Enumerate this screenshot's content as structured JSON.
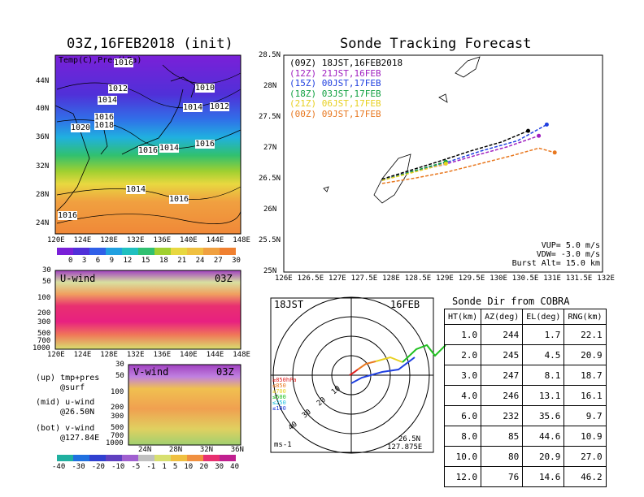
{
  "map_panel": {
    "title": "03Z,16FEB2018 (init)",
    "overlay_label": "Temp(C),Pres(hPa)",
    "lon_ticks": [
      "120E",
      "124E",
      "128E",
      "132E",
      "136E",
      "140E",
      "144E",
      "148E"
    ],
    "lat_ticks": [
      "44N",
      "40N",
      "36N",
      "32N",
      "28N",
      "24N"
    ],
    "isobar_labels": [
      "1016",
      "1012",
      "1014",
      "1010",
      "1014",
      "1012",
      "1016",
      "1018",
      "1020",
      "1016",
      "1014",
      "1016",
      "1014",
      "1016",
      "1016"
    ],
    "temp_colorbar": [
      "0",
      "3",
      "6",
      "9",
      "12",
      "15",
      "18",
      "21",
      "24",
      "27",
      "30"
    ]
  },
  "uwind_panel": {
    "title": "U-wind",
    "time": "03Z",
    "p_ticks": [
      "30",
      "50",
      "100",
      "200",
      "300",
      "500",
      "700",
      "1000"
    ],
    "lon_ticks": [
      "120E",
      "124E",
      "128E",
      "132E",
      "136E",
      "140E",
      "144E",
      "148E"
    ]
  },
  "vwind_panel": {
    "title": "V-wind",
    "time": "03Z",
    "p_ticks": [
      "30",
      "50",
      "100",
      "200",
      "300",
      "500",
      "700",
      "1000"
    ],
    "lat_ticks": [
      "24N",
      "28N",
      "32N",
      "36N"
    ]
  },
  "notes": {
    "up_1": "(up) tmp+pres",
    "up_2": "@surf",
    "mid_1": "(mid) u-wind",
    "mid_2": "@26.50N",
    "bot_1": "(bot) v-wind",
    "bot_2": "@127.84E"
  },
  "wind_colorbar": [
    "-40",
    "-30",
    "-20",
    "-10",
    "-5",
    "-1",
    "1",
    "5",
    "10",
    "20",
    "30",
    "40"
  ],
  "tracking": {
    "title": "Sonde Tracking Forecast",
    "lat_ticks": [
      "28.5N",
      "28N",
      "27.5N",
      "27N",
      "26.5N",
      "26N",
      "25.5N",
      "25N"
    ],
    "lon_ticks": [
      "126E",
      "126.5E",
      "127E",
      "127.5E",
      "128E",
      "128.5E",
      "129E",
      "129.5E",
      "130E",
      "130.5E",
      "131E",
      "131.5E",
      "132E"
    ],
    "legend": [
      {
        "run": "(09Z)",
        "time": "18JST,16FEB2018",
        "color": "#000000"
      },
      {
        "run": "(12Z)",
        "time": "21JST,16FEB",
        "color": "#a020c0"
      },
      {
        "run": "(15Z)",
        "time": "00JST,17FEB",
        "color": "#2040e0"
      },
      {
        "run": "(18Z)",
        "time": "03JST,17FEB",
        "color": "#10a040"
      },
      {
        "run": "(21Z)",
        "time": "06JST,17FEB",
        "color": "#e8d020"
      },
      {
        "run": "(00Z)",
        "time": "09JST,17FEB",
        "color": "#e87820"
      }
    ],
    "params": {
      "vup": "VUP= 5.0 m/s",
      "vdw": "VDW= -3.0 m/s",
      "burst": "Burst Alt= 15.0 km"
    }
  },
  "polar": {
    "time_label": "18JST",
    "date_label": "16FEB",
    "ring_labels": [
      "10",
      "20",
      "30",
      "40"
    ],
    "unit": "ms-1",
    "lat": "26.5N",
    "lon": "127.875E",
    "pressure_legend": [
      {
        "label": "≥850hPa",
        "color": "#e02020"
      },
      {
        "label": "≤850",
        "color": "#e87820"
      },
      {
        "label": "≤700",
        "color": "#e8d020"
      },
      {
        "label": "≤500",
        "color": "#20c020"
      },
      {
        "label": "≤250",
        "color": "#20c0e0"
      },
      {
        "label": "≤100",
        "color": "#2040e0"
      }
    ]
  },
  "sonde_table": {
    "title": "Sonde Dir from COBRA",
    "headers": [
      "HT(km)",
      "AZ(deg)",
      "EL(deg)",
      "RNG(km)"
    ],
    "rows": [
      [
        "1.0",
        "244",
        "1.7",
        "22.1"
      ],
      [
        "2.0",
        "245",
        "4.5",
        "20.9"
      ],
      [
        "3.0",
        "247",
        "8.1",
        "18.7"
      ],
      [
        "4.0",
        "246",
        "13.1",
        "16.1"
      ],
      [
        "6.0",
        "232",
        "35.6",
        "9.7"
      ],
      [
        "8.0",
        "85",
        "44.6",
        "10.9"
      ],
      [
        "10.0",
        "80",
        "20.9",
        "27.0"
      ],
      [
        "12.0",
        "76",
        "14.6",
        "46.2"
      ]
    ]
  },
  "chart_data": {
    "type": "line",
    "title": "Sonde Tracking Forecast",
    "xlim": [
      126,
      132
    ],
    "ylim": [
      25,
      28.5
    ],
    "series": [
      {
        "name": "(09Z) 18JST,16FEB2018",
        "color": "#000000",
        "x": [
          127.85,
          128.3,
          128.9,
          129.5,
          130.1,
          130.6
        ],
        "y": [
          26.5,
          26.62,
          26.78,
          26.95,
          27.1,
          27.28
        ]
      },
      {
        "name": "(12Z) 21JST,16FEB",
        "color": "#a020c0",
        "x": [
          127.85,
          128.3,
          129.0,
          129.6,
          130.2,
          130.8
        ],
        "y": [
          26.48,
          26.6,
          26.73,
          26.88,
          27.02,
          27.2
        ]
      },
      {
        "name": "(15Z) 00JST,17FEB",
        "color": "#2040e0",
        "x": [
          127.85,
          128.4,
          129.1,
          129.7,
          130.4,
          130.95
        ],
        "y": [
          26.48,
          26.62,
          26.78,
          26.95,
          27.12,
          27.38
        ]
      },
      {
        "name": "(18Z) 03JST,17FEB",
        "color": "#10a040",
        "x": [
          127.85,
          128.4,
          129.05
        ],
        "y": [
          26.48,
          26.62,
          26.78
        ]
      },
      {
        "name": "(21Z) 06JST,17FEB",
        "color": "#e8d020",
        "x": [
          127.85,
          128.4,
          129.05
        ],
        "y": [
          26.48,
          26.6,
          26.75
        ]
      },
      {
        "name": "(00Z) 09JST,17FEB",
        "color": "#e87820",
        "x": [
          127.85,
          128.5,
          129.1,
          129.7,
          130.3,
          130.8,
          131.1
        ],
        "y": [
          26.43,
          26.52,
          26.62,
          26.75,
          26.88,
          27.0,
          26.93
        ]
      }
    ]
  }
}
